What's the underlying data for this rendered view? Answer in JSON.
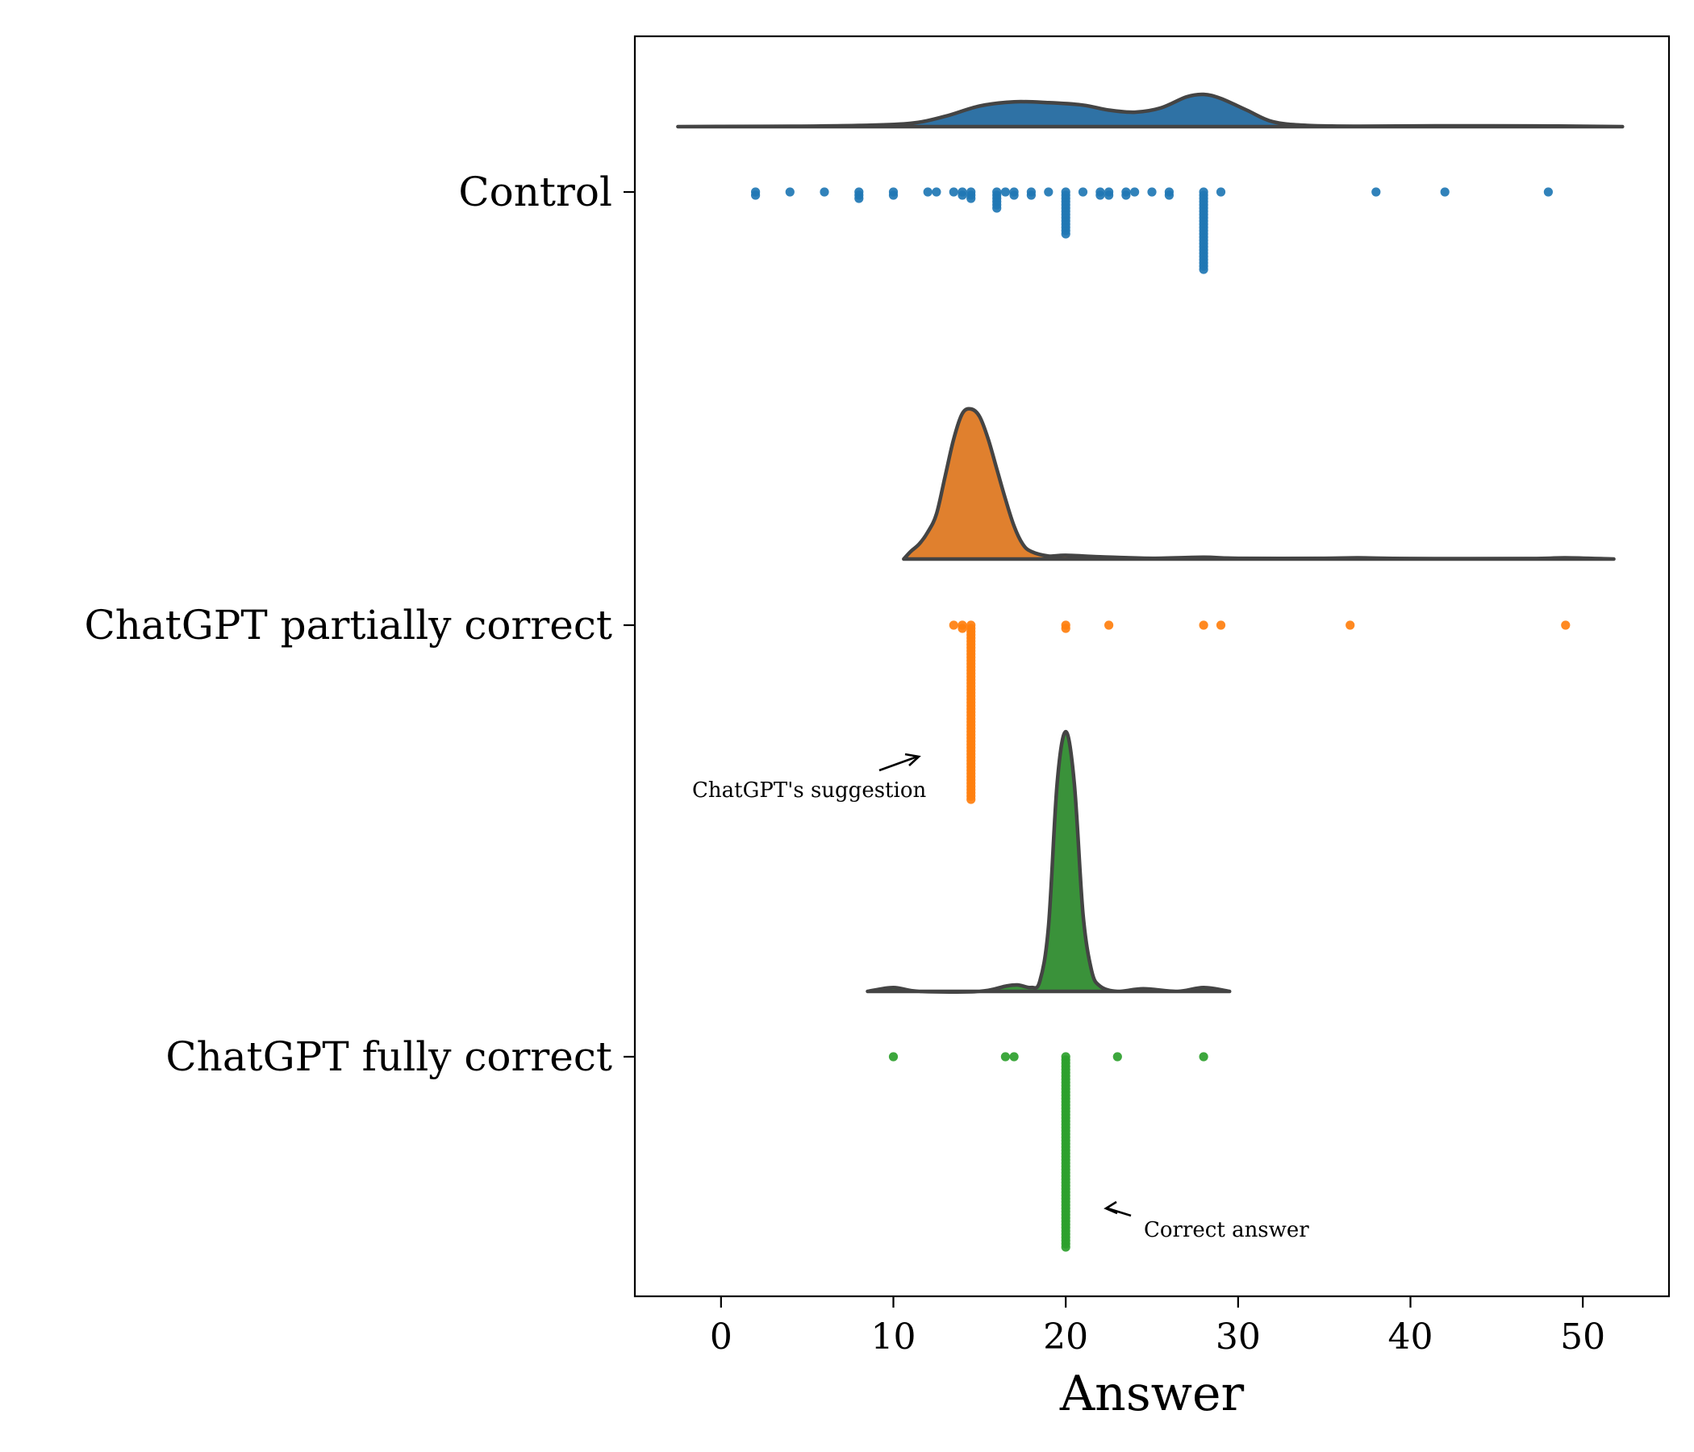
{
  "chart_data": {
    "type": "raincloud",
    "xlabel": "Answer",
    "xlim": [
      -5,
      55
    ],
    "xticks": [
      0,
      10,
      20,
      30,
      40,
      50
    ],
    "groups": [
      {
        "name": "Control",
        "color": "#1f77b4",
        "fill": "#2f72a5",
        "density": [
          [
            -2.5,
            0.0
          ],
          [
            0,
            0.005
          ],
          [
            4,
            0.01
          ],
          [
            8,
            0.03
          ],
          [
            11,
            0.08
          ],
          [
            13,
            0.25
          ],
          [
            15,
            0.5
          ],
          [
            17,
            0.6
          ],
          [
            19,
            0.58
          ],
          [
            21,
            0.52
          ],
          [
            22.5,
            0.4
          ],
          [
            24,
            0.35
          ],
          [
            25.5,
            0.45
          ],
          [
            27,
            0.72
          ],
          [
            28,
            0.78
          ],
          [
            29,
            0.68
          ],
          [
            30.5,
            0.4
          ],
          [
            32,
            0.12
          ],
          [
            34,
            0.03
          ],
          [
            37,
            0.01
          ],
          [
            42,
            0.02
          ],
          [
            48,
            0.015
          ],
          [
            52.3,
            0.0
          ]
        ],
        "points": [
          {
            "x": 2,
            "n": 2
          },
          {
            "x": 4,
            "n": 1
          },
          {
            "x": 6,
            "n": 1
          },
          {
            "x": 8,
            "n": 3
          },
          {
            "x": 10,
            "n": 2
          },
          {
            "x": 12,
            "n": 1
          },
          {
            "x": 12.5,
            "n": 1
          },
          {
            "x": 13.5,
            "n": 1
          },
          {
            "x": 14,
            "n": 2
          },
          {
            "x": 14.5,
            "n": 3
          },
          {
            "x": 16,
            "n": 6
          },
          {
            "x": 16.5,
            "n": 1
          },
          {
            "x": 17,
            "n": 2
          },
          {
            "x": 18,
            "n": 2
          },
          {
            "x": 19,
            "n": 1
          },
          {
            "x": 20,
            "n": 14
          },
          {
            "x": 21,
            "n": 1
          },
          {
            "x": 22,
            "n": 2
          },
          {
            "x": 22.5,
            "n": 2
          },
          {
            "x": 23.5,
            "n": 2
          },
          {
            "x": 24,
            "n": 1
          },
          {
            "x": 25,
            "n": 1
          },
          {
            "x": 26,
            "n": 2
          },
          {
            "x": 28,
            "n": 25
          },
          {
            "x": 29,
            "n": 1
          },
          {
            "x": 38,
            "n": 1
          },
          {
            "x": 42,
            "n": 1
          },
          {
            "x": 48,
            "n": 1
          }
        ]
      },
      {
        "name": "ChatGPT partially correct",
        "color": "#ff7f0e",
        "fill": "#e0802e",
        "density": [
          [
            10.6,
            0.0
          ],
          [
            11,
            0.05
          ],
          [
            11.5,
            0.1
          ],
          [
            12,
            0.18
          ],
          [
            12.5,
            0.3
          ],
          [
            13,
            0.55
          ],
          [
            13.5,
            0.8
          ],
          [
            14,
            0.97
          ],
          [
            14.5,
            1.0
          ],
          [
            15,
            0.95
          ],
          [
            15.5,
            0.8
          ],
          [
            16,
            0.6
          ],
          [
            16.5,
            0.4
          ],
          [
            17,
            0.22
          ],
          [
            17.5,
            0.1
          ],
          [
            18,
            0.05
          ],
          [
            19,
            0.02
          ],
          [
            20,
            0.025
          ],
          [
            22,
            0.015
          ],
          [
            25,
            0.005
          ],
          [
            28,
            0.012
          ],
          [
            30,
            0.005
          ],
          [
            35,
            0.005
          ],
          [
            37,
            0.008
          ],
          [
            40,
            0.003
          ],
          [
            47,
            0.003
          ],
          [
            49,
            0.008
          ],
          [
            51.8,
            0.0
          ]
        ],
        "points": [
          {
            "x": 13.5,
            "n": 1
          },
          {
            "x": 14,
            "n": 2
          },
          {
            "x": 14.5,
            "n": 55
          },
          {
            "x": 20,
            "n": 2
          },
          {
            "x": 22.5,
            "n": 1
          },
          {
            "x": 28,
            "n": 1
          },
          {
            "x": 29,
            "n": 1
          },
          {
            "x": 36.5,
            "n": 1
          },
          {
            "x": 49,
            "n": 1
          }
        ]
      },
      {
        "name": "ChatGPT fully correct",
        "color": "#2ca02c",
        "fill": "#3a923a",
        "density": [
          [
            8.5,
            0.0
          ],
          [
            10,
            0.015
          ],
          [
            11.5,
            0.0
          ],
          [
            15,
            0.0
          ],
          [
            16.5,
            0.02
          ],
          [
            17.2,
            0.025
          ],
          [
            18,
            0.015
          ],
          [
            18.5,
            0.04
          ],
          [
            19,
            0.25
          ],
          [
            19.5,
            0.8
          ],
          [
            20,
            1.0
          ],
          [
            20.5,
            0.8
          ],
          [
            21,
            0.3
          ],
          [
            21.5,
            0.08
          ],
          [
            22,
            0.02
          ],
          [
            23,
            0.0
          ],
          [
            24.5,
            0.01
          ],
          [
            26.5,
            0.0
          ],
          [
            28,
            0.015
          ],
          [
            29.5,
            0.0
          ]
        ],
        "points": [
          {
            "x": 10,
            "n": 1
          },
          {
            "x": 16.5,
            "n": 1
          },
          {
            "x": 17,
            "n": 1
          },
          {
            "x": 20,
            "n": 60
          },
          {
            "x": 23,
            "n": 1
          },
          {
            "x": 28,
            "n": 1
          }
        ]
      }
    ],
    "annotations": [
      {
        "text": "ChatGPT's suggestion",
        "group": 1
      },
      {
        "text": "Correct answer",
        "group": 2
      }
    ]
  }
}
